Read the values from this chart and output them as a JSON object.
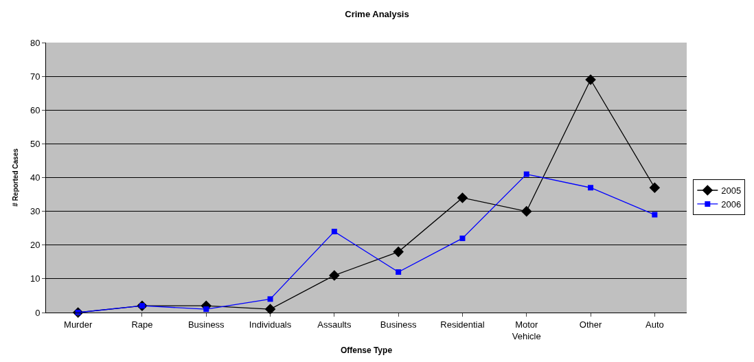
{
  "chart_data": {
    "type": "line",
    "title": "Crime Analysis",
    "xlabel": "Offense Type",
    "ylabel": "# Reported Cases",
    "categories": [
      "Murder",
      "Rape",
      "Business",
      "Individuals",
      "Assaults",
      "Business",
      "Residential",
      "Motor Vehicle",
      "Other",
      "Auto"
    ],
    "series": [
      {
        "name": "2005",
        "color": "#000000",
        "marker": "diamond",
        "values": [
          0,
          2,
          2,
          1,
          11,
          18,
          34,
          30,
          69,
          37
        ]
      },
      {
        "name": "2006",
        "color": "#0000ff",
        "marker": "square",
        "values": [
          0,
          2,
          1,
          4,
          24,
          12,
          22,
          41,
          37,
          29
        ]
      }
    ],
    "ylim": [
      0,
      80
    ],
    "yticks": [
      0,
      10,
      20,
      30,
      40,
      50,
      60,
      70,
      80
    ],
    "grid": "y",
    "legend": "right",
    "line_style": "solid"
  }
}
